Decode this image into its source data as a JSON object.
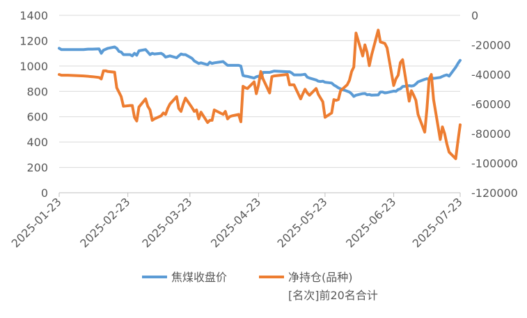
{
  "chart_data": {
    "type": "line",
    "title": "",
    "x_ticks": [
      "2025-01-23",
      "2025-02-23",
      "2025-03-23",
      "2025-04-23",
      "2025-05-23",
      "2025-06-23",
      "2025-07-23"
    ],
    "y_left": {
      "min": 0,
      "max": 1400,
      "step": 200,
      "ticks": [
        "0",
        "200",
        "400",
        "600",
        "800",
        "1000",
        "1200",
        "1400"
      ]
    },
    "y_right": {
      "min": -120000,
      "max": 0,
      "step": 20000,
      "ticks": [
        "-120000",
        "-100000",
        "-80000",
        "-60000",
        "-40000",
        "-20000",
        "0"
      ]
    },
    "grid": "horizontal",
    "legend_position": "bottom",
    "series": [
      {
        "name": "焦煤收盘价",
        "axis": "left",
        "color": "#5B9BD5",
        "points": [
          [
            "2025-01-23",
            1140
          ],
          [
            "2025-01-24",
            1130
          ],
          [
            "2025-01-27",
            1130
          ],
          [
            "2025-02-03",
            1130
          ],
          [
            "2025-02-05",
            1133
          ],
          [
            "2025-02-07",
            1133
          ],
          [
            "2025-02-10",
            1135
          ],
          [
            "2025-02-11",
            1100
          ],
          [
            "2025-02-12",
            1125
          ],
          [
            "2025-02-14",
            1140
          ],
          [
            "2025-02-17",
            1150
          ],
          [
            "2025-02-18",
            1140
          ],
          [
            "2025-02-19",
            1115
          ],
          [
            "2025-02-20",
            1110
          ],
          [
            "2025-02-21",
            1090
          ],
          [
            "2025-02-24",
            1090
          ],
          [
            "2025-02-25",
            1080
          ],
          [
            "2025-02-26",
            1100
          ],
          [
            "2025-02-27",
            1085
          ],
          [
            "2025-02-28",
            1120
          ],
          [
            "2025-03-03",
            1130
          ],
          [
            "2025-03-04",
            1110
          ],
          [
            "2025-03-05",
            1090
          ],
          [
            "2025-03-06",
            1100
          ],
          [
            "2025-03-07",
            1095
          ],
          [
            "2025-03-10",
            1100
          ],
          [
            "2025-03-11",
            1090
          ],
          [
            "2025-03-12",
            1070
          ],
          [
            "2025-03-13",
            1075
          ],
          [
            "2025-03-14",
            1080
          ],
          [
            "2025-03-17",
            1065
          ],
          [
            "2025-03-18",
            1080
          ],
          [
            "2025-03-19",
            1095
          ],
          [
            "2025-03-20",
            1090
          ],
          [
            "2025-03-21",
            1090
          ],
          [
            "2025-03-24",
            1060
          ],
          [
            "2025-03-25",
            1040
          ],
          [
            "2025-03-26",
            1030
          ],
          [
            "2025-03-27",
            1020
          ],
          [
            "2025-03-28",
            1025
          ],
          [
            "2025-03-31",
            1010
          ],
          [
            "2025-04-01",
            1030
          ],
          [
            "2025-04-02",
            1020
          ],
          [
            "2025-04-03",
            1025
          ],
          [
            "2025-04-07",
            1035
          ],
          [
            "2025-04-08",
            1020
          ],
          [
            "2025-04-09",
            1005
          ],
          [
            "2025-04-11",
            1005
          ],
          [
            "2025-04-14",
            1005
          ],
          [
            "2025-04-15",
            1000
          ],
          [
            "2025-04-16",
            925
          ],
          [
            "2025-04-17",
            920
          ],
          [
            "2025-04-18",
            918
          ],
          [
            "2025-04-21",
            905
          ],
          [
            "2025-04-22",
            915
          ],
          [
            "2025-04-23",
            920
          ],
          [
            "2025-04-24",
            905
          ],
          [
            "2025-04-25",
            950
          ],
          [
            "2025-04-28",
            950
          ],
          [
            "2025-04-29",
            955
          ],
          [
            "2025-04-30",
            960
          ],
          [
            "2025-05-06",
            955
          ],
          [
            "2025-05-07",
            955
          ],
          [
            "2025-05-08",
            945
          ],
          [
            "2025-05-09",
            930
          ],
          [
            "2025-05-12",
            930
          ],
          [
            "2025-05-13",
            932
          ],
          [
            "2025-05-14",
            935
          ],
          [
            "2025-05-15",
            912
          ],
          [
            "2025-05-16",
            905
          ],
          [
            "2025-05-19",
            890
          ],
          [
            "2025-05-20",
            880
          ],
          [
            "2025-05-21",
            878
          ],
          [
            "2025-05-22",
            880
          ],
          [
            "2025-05-23",
            872
          ],
          [
            "2025-05-26",
            866
          ],
          [
            "2025-05-27",
            850
          ],
          [
            "2025-05-28",
            840
          ],
          [
            "2025-05-29",
            828
          ],
          [
            "2025-05-30",
            820
          ],
          [
            "2025-06-03",
            795
          ],
          [
            "2025-06-04",
            780
          ],
          [
            "2025-06-05",
            760
          ],
          [
            "2025-06-06",
            770
          ],
          [
            "2025-06-09",
            782
          ],
          [
            "2025-06-10",
            783
          ],
          [
            "2025-06-11",
            773
          ],
          [
            "2025-06-12",
            775
          ],
          [
            "2025-06-13",
            770
          ],
          [
            "2025-06-16",
            772
          ],
          [
            "2025-06-17",
            795
          ],
          [
            "2025-06-18",
            795
          ],
          [
            "2025-06-19",
            788
          ],
          [
            "2025-06-20",
            790
          ],
          [
            "2025-06-23",
            802
          ],
          [
            "2025-06-24",
            800
          ],
          [
            "2025-06-25",
            815
          ],
          [
            "2025-06-26",
            820
          ],
          [
            "2025-06-27",
            838
          ],
          [
            "2025-06-30",
            845
          ],
          [
            "2025-07-01",
            842
          ],
          [
            "2025-07-02",
            845
          ],
          [
            "2025-07-03",
            858
          ],
          [
            "2025-07-04",
            875
          ],
          [
            "2025-07-07",
            895
          ],
          [
            "2025-07-08",
            900
          ],
          [
            "2025-07-09",
            895
          ],
          [
            "2025-07-10",
            910
          ],
          [
            "2025-07-11",
            902
          ],
          [
            "2025-07-14",
            910
          ],
          [
            "2025-07-15",
            918
          ],
          [
            "2025-07-16",
            925
          ],
          [
            "2025-07-17",
            930
          ],
          [
            "2025-07-18",
            920
          ],
          [
            "2025-07-21",
            990
          ],
          [
            "2025-07-22",
            1020
          ],
          [
            "2025-07-23",
            1045
          ]
        ]
      },
      {
        "name": "净持仓(品种)[名次]前20名合计",
        "axis": "right",
        "color": "#ED7D31",
        "points": [
          [
            "2025-01-23",
            -40000
          ],
          [
            "2025-01-24",
            -40500
          ],
          [
            "2025-01-27",
            -40500
          ],
          [
            "2025-02-03",
            -41000
          ],
          [
            "2025-02-07",
            -41500
          ],
          [
            "2025-02-10",
            -42000
          ],
          [
            "2025-02-11",
            -43000
          ],
          [
            "2025-02-12",
            -37500
          ],
          [
            "2025-02-13",
            -37500
          ],
          [
            "2025-02-14",
            -38000
          ],
          [
            "2025-02-17",
            -38500
          ],
          [
            "2025-02-18",
            -49000
          ],
          [
            "2025-02-19",
            -52000
          ],
          [
            "2025-02-20",
            -55000
          ],
          [
            "2025-02-21",
            -61500
          ],
          [
            "2025-02-24",
            -61000
          ],
          [
            "2025-02-25",
            -61000
          ],
          [
            "2025-02-26",
            -69000
          ],
          [
            "2025-02-27",
            -71500
          ],
          [
            "2025-02-28",
            -62000
          ],
          [
            "2025-03-03",
            -56500
          ],
          [
            "2025-03-04",
            -61500
          ],
          [
            "2025-03-05",
            -64000
          ],
          [
            "2025-03-06",
            -71000
          ],
          [
            "2025-03-07",
            -70000
          ],
          [
            "2025-03-10",
            -68000
          ],
          [
            "2025-03-11",
            -66000
          ],
          [
            "2025-03-12",
            -67000
          ],
          [
            "2025-03-13",
            -63000
          ],
          [
            "2025-03-14",
            -60000
          ],
          [
            "2025-03-17",
            -55000
          ],
          [
            "2025-03-18",
            -63000
          ],
          [
            "2025-03-19",
            -65000
          ],
          [
            "2025-03-20",
            -60000
          ],
          [
            "2025-03-21",
            -56000
          ],
          [
            "2025-03-24",
            -62500
          ],
          [
            "2025-03-25",
            -65000
          ],
          [
            "2025-03-26",
            -64000
          ],
          [
            "2025-03-27",
            -70000
          ],
          [
            "2025-03-28",
            -65500
          ],
          [
            "2025-03-31",
            -72500
          ],
          [
            "2025-04-01",
            -71000
          ],
          [
            "2025-04-02",
            -71000
          ],
          [
            "2025-04-03",
            -64000
          ],
          [
            "2025-04-07",
            -67000
          ],
          [
            "2025-04-08",
            -65000
          ],
          [
            "2025-04-09",
            -70000
          ],
          [
            "2025-04-10",
            -68500
          ],
          [
            "2025-04-11",
            -68000
          ],
          [
            "2025-04-14",
            -67000
          ],
          [
            "2025-04-15",
            -72000
          ],
          [
            "2025-04-16",
            -48000
          ],
          [
            "2025-04-17",
            -49000
          ],
          [
            "2025-04-18",
            -49500
          ],
          [
            "2025-04-21",
            -45000
          ],
          [
            "2025-04-22",
            -53000
          ],
          [
            "2025-04-23",
            -47000
          ],
          [
            "2025-04-24",
            -38000
          ],
          [
            "2025-04-25",
            -43000
          ],
          [
            "2025-04-28",
            -52500
          ],
          [
            "2025-04-29",
            -41500
          ],
          [
            "2025-04-30",
            -41000
          ],
          [
            "2025-05-06",
            -40000
          ],
          [
            "2025-05-07",
            -47000
          ],
          [
            "2025-05-08",
            -47000
          ],
          [
            "2025-05-09",
            -47000
          ],
          [
            "2025-05-12",
            -56500
          ],
          [
            "2025-05-13",
            -53000
          ],
          [
            "2025-05-14",
            -50000
          ],
          [
            "2025-05-15",
            -52500
          ],
          [
            "2025-05-16",
            -54000
          ],
          [
            "2025-05-19",
            -49500
          ],
          [
            "2025-05-20",
            -53500
          ],
          [
            "2025-05-21",
            -56000
          ],
          [
            "2025-05-22",
            -58500
          ],
          [
            "2025-05-23",
            -69000
          ],
          [
            "2025-05-26",
            -66000
          ],
          [
            "2025-05-27",
            -57000
          ],
          [
            "2025-05-28",
            -57500
          ],
          [
            "2025-05-29",
            -57000
          ],
          [
            "2025-05-30",
            -51000
          ],
          [
            "2025-06-02",
            -47000
          ],
          [
            "2025-06-03",
            -44000
          ],
          [
            "2025-06-04",
            -38000
          ],
          [
            "2025-06-05",
            -35000
          ],
          [
            "2025-06-06",
            -12000
          ],
          [
            "2025-06-09",
            -27500
          ],
          [
            "2025-06-10",
            -20000
          ],
          [
            "2025-06-11",
            -25000
          ],
          [
            "2025-06-12",
            -34000
          ],
          [
            "2025-06-13",
            -27000
          ],
          [
            "2025-06-16",
            -10000
          ],
          [
            "2025-06-17",
            -18000
          ],
          [
            "2025-06-18",
            -18500
          ],
          [
            "2025-06-19",
            -19000
          ],
          [
            "2025-06-20",
            -22000
          ],
          [
            "2025-06-23",
            -47500
          ],
          [
            "2025-06-24",
            -43000
          ],
          [
            "2025-06-25",
            -40500
          ],
          [
            "2025-06-26",
            -32000
          ],
          [
            "2025-06-27",
            -30000
          ],
          [
            "2025-06-30",
            -58000
          ],
          [
            "2025-07-01",
            -51000
          ],
          [
            "2025-07-02",
            -54000
          ],
          [
            "2025-07-03",
            -57500
          ],
          [
            "2025-07-04",
            -67000
          ],
          [
            "2025-07-07",
            -79000
          ],
          [
            "2025-07-08",
            -63000
          ],
          [
            "2025-07-09",
            -43000
          ],
          [
            "2025-07-10",
            -40000
          ],
          [
            "2025-07-11",
            -57000
          ],
          [
            "2025-07-14",
            -84000
          ],
          [
            "2025-07-15",
            -75500
          ],
          [
            "2025-07-16",
            -80000
          ],
          [
            "2025-07-17",
            -87000
          ],
          [
            "2025-07-18",
            -92500
          ],
          [
            "2025-07-21",
            -97000
          ],
          [
            "2025-07-22",
            -85000
          ],
          [
            "2025-07-23",
            -74000
          ]
        ]
      }
    ]
  }
}
